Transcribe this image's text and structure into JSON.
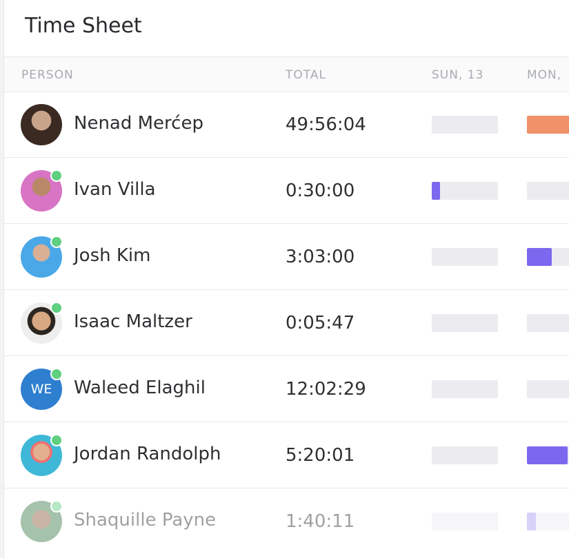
{
  "header": {
    "title": "Time Sheet"
  },
  "table": {
    "columns": [
      "PERSON",
      "TOTAL",
      "SUN, 13",
      "MON,"
    ],
    "rows": [
      {
        "name": "Nenad Merćep",
        "total": "49:56:04"
      },
      {
        "name": "Ivan Villa",
        "total": "0:30:00"
      },
      {
        "name": "Josh Kim",
        "total": "3:03:00"
      },
      {
        "name": "Isaac Maltzer",
        "total": "0:05:47"
      },
      {
        "initials": "WE",
        "name": "Waleed Elaghil",
        "total": "12:02:29"
      },
      {
        "name": "Jordan Randolph",
        "total": "5:20:01"
      },
      {
        "name": "Shaquille Payne",
        "total": "1:40:11"
      }
    ]
  }
}
